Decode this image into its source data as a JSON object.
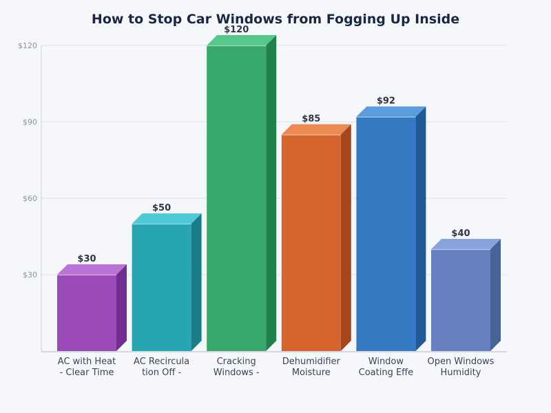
{
  "chart_data": {
    "type": "bar",
    "title": "How to Stop Car Windows from Fogging Up Inside",
    "xlabel": "",
    "ylabel": "",
    "ylim": [
      0,
      120
    ],
    "yticks": [
      30,
      60,
      90,
      120
    ],
    "ytick_labels": [
      "$30",
      "$60",
      "$90",
      "$120"
    ],
    "grid": true,
    "legend": null,
    "categories": [
      [
        "AC with Heat",
        "- Clear Time"
      ],
      [
        "AC Recircula",
        "tion Off -"
      ],
      [
        "Cracking",
        "Windows -"
      ],
      [
        "Dehumidifier",
        "Moisture"
      ],
      [
        "Window",
        "Coating Effe"
      ],
      [
        "Open Windows",
        "Humidity"
      ]
    ],
    "values": [
      30,
      50,
      120,
      85,
      92,
      40
    ],
    "value_labels": [
      "$30",
      "$50",
      "$120",
      "$85",
      "$92",
      "$40"
    ],
    "colors": [
      {
        "front": "#9b4bb8",
        "top": "#bb73d6",
        "side": "#722d91"
      },
      {
        "front": "#27a5b2",
        "top": "#4fcbd8",
        "side": "#1b7d88"
      },
      {
        "front": "#38a96a",
        "top": "#55c98a",
        "side": "#22804a"
      },
      {
        "front": "#d5642d",
        "top": "#ec8a51",
        "side": "#a5461c"
      },
      {
        "front": "#3579c2",
        "top": "#5b9ee0",
        "side": "#1f5a96"
      },
      {
        "front": "#6781c0",
        "top": "#89a4dd",
        "side": "#46639a"
      }
    ]
  }
}
